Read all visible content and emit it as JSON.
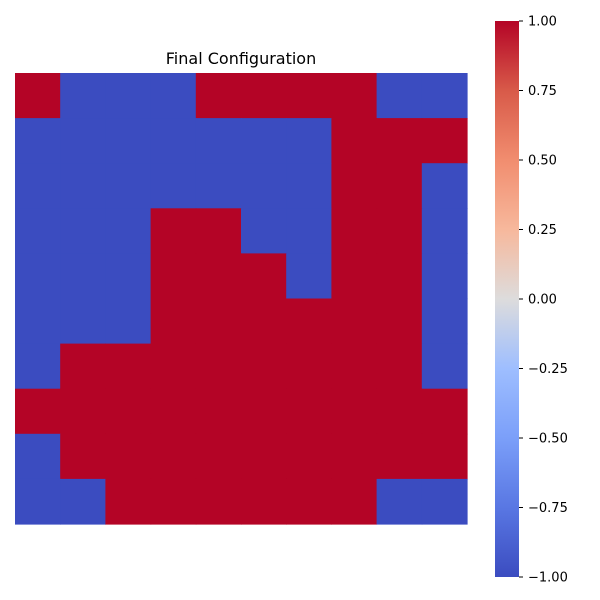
{
  "chart_data": {
    "type": "heatmap",
    "title": "Final Configuration",
    "xlabel": "",
    "ylabel": "",
    "colormap": "coolwarm",
    "value_range": [
      -1,
      1
    ],
    "colors": {
      "low": "#3b4cc0",
      "high": "#b40426"
    },
    "grid": false,
    "axes_visible": false,
    "colorbar": {
      "position": "right",
      "ticks": [
        1.0,
        0.75,
        0.5,
        0.25,
        0.0,
        -0.25,
        -0.5,
        -0.75,
        -1.0
      ],
      "tick_labels": [
        "1.00",
        "0.75",
        "0.50",
        "0.25",
        "0.00",
        "−0.25",
        "−0.50",
        "−0.75",
        "−1.00"
      ]
    },
    "matrix": [
      [
        1,
        -1,
        -1,
        -1,
        1,
        1,
        1,
        1,
        -1,
        -1
      ],
      [
        -1,
        -1,
        -1,
        -1,
        -1,
        -1,
        -1,
        1,
        1,
        1
      ],
      [
        -1,
        -1,
        -1,
        -1,
        -1,
        -1,
        -1,
        1,
        1,
        -1
      ],
      [
        -1,
        -1,
        -1,
        1,
        1,
        -1,
        -1,
        1,
        1,
        -1
      ],
      [
        -1,
        -1,
        -1,
        1,
        1,
        1,
        -1,
        1,
        1,
        -1
      ],
      [
        -1,
        -1,
        -1,
        1,
        1,
        1,
        1,
        1,
        1,
        -1
      ],
      [
        -1,
        1,
        1,
        1,
        1,
        1,
        1,
        1,
        1,
        -1
      ],
      [
        1,
        1,
        1,
        1,
        1,
        1,
        1,
        1,
        1,
        1
      ],
      [
        -1,
        1,
        1,
        1,
        1,
        1,
        1,
        1,
        1,
        1
      ],
      [
        -1,
        -1,
        1,
        1,
        1,
        1,
        1,
        1,
        -1,
        -1
      ]
    ]
  }
}
